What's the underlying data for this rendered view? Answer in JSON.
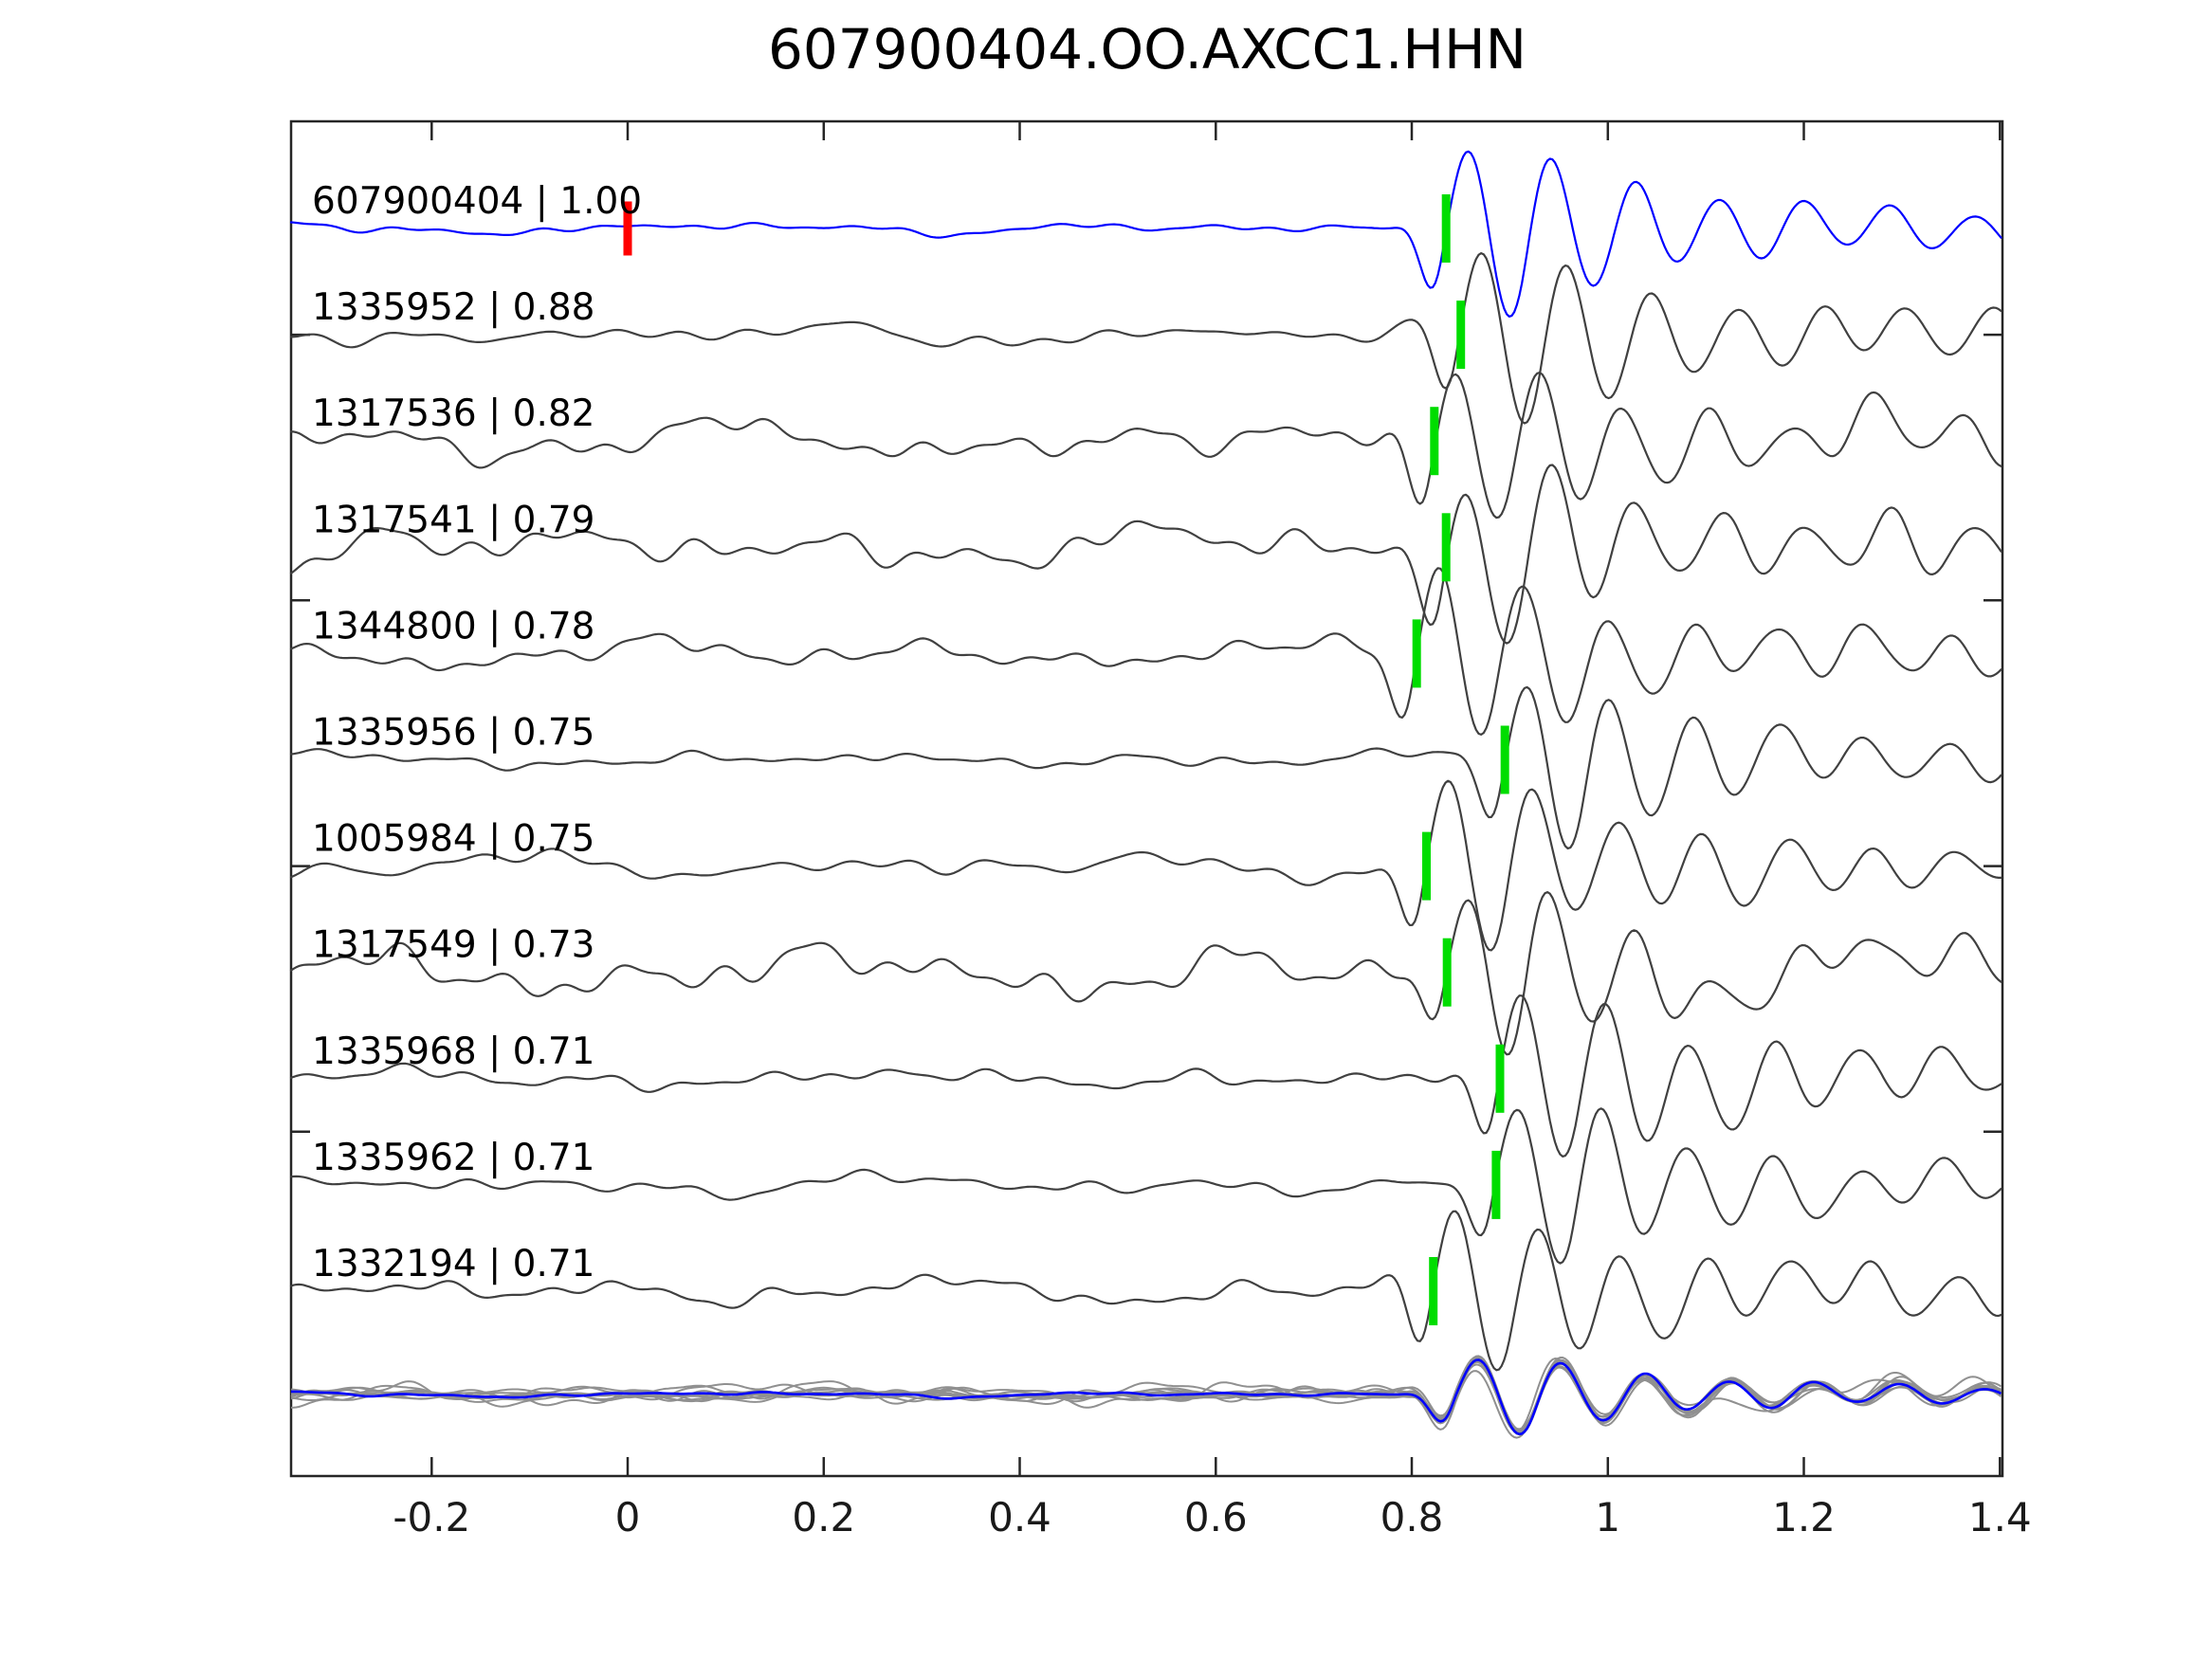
{
  "title": "607900404.OO.AXCC1.HHN",
  "colors": {
    "template_trace": "#0000ff",
    "matched_trace": "#404040",
    "overlay_member": "#909090",
    "overlay_stack": "#0000ff",
    "pick_marker": "#00dd00",
    "reference_marker": "#ff0000",
    "axis": "#262626",
    "text": "#000000",
    "background": "#ffffff"
  },
  "x_axis": {
    "tick_values": [
      -0.2,
      0,
      0.2,
      0.4,
      0.6,
      0.8,
      1,
      1.2,
      1.4
    ],
    "tick_labels": [
      "-0.2",
      "0",
      "0.2",
      "0.4",
      "0.6",
      "0.8",
      "1",
      "1.2",
      "1.4"
    ],
    "limits": [
      -0.343,
      1.403
    ]
  },
  "chart_data": {
    "type": "line",
    "title": "607900404.OO.AXCC1.HHN",
    "xlabel": "",
    "ylabel": "",
    "xlim": [
      -0.343,
      1.403
    ],
    "x_ticks": [
      -0.2,
      0,
      0.2,
      0.4,
      0.6,
      0.8,
      1,
      1.2,
      1.4
    ],
    "x_tick_labels": [
      "-0.2",
      "0",
      "0.2",
      "0.4",
      "0.6",
      "0.8",
      "1",
      "1.2",
      "1.4"
    ],
    "grid": false,
    "legend_position": "none",
    "description": "Template seismogram (blue, top row) and ten matched-event waveforms (dark gray rows) sorted by cross-correlation coefficient. Green bars mark the phase pick on each trace; the red bar marks the template reference time (t = 0). Bottom row overlays all traces aligned on their picks (gray) with the stacked/template trace in blue.",
    "traces": [
      {
        "event_id": "607900404",
        "correlation": 1.0,
        "label": "607900404 | 1.00",
        "pick_time": 0.835,
        "color_role": "template"
      },
      {
        "event_id": "1335952",
        "correlation": 0.88,
        "label": "1335952 | 0.88",
        "pick_time": 0.85,
        "color_role": "match"
      },
      {
        "event_id": "1317536",
        "correlation": 0.82,
        "label": "1317536 | 0.82",
        "pick_time": 0.823,
        "color_role": "match"
      },
      {
        "event_id": "1317541",
        "correlation": 0.79,
        "label": "1317541 | 0.79",
        "pick_time": 0.835,
        "color_role": "match"
      },
      {
        "event_id": "1344800",
        "correlation": 0.78,
        "label": "1344800 | 0.78",
        "pick_time": 0.805,
        "color_role": "match"
      },
      {
        "event_id": "1335956",
        "correlation": 0.75,
        "label": "1335956 | 0.75",
        "pick_time": 0.895,
        "color_role": "match"
      },
      {
        "event_id": "1005984",
        "correlation": 0.75,
        "label": "1005984 | 0.75",
        "pick_time": 0.815,
        "color_role": "match"
      },
      {
        "event_id": "1317549",
        "correlation": 0.73,
        "label": "1317549 | 0.73",
        "pick_time": 0.836,
        "color_role": "match"
      },
      {
        "event_id": "1335968",
        "correlation": 0.71,
        "label": "1335968 | 0.71",
        "pick_time": 0.89,
        "color_role": "match"
      },
      {
        "event_id": "1335962",
        "correlation": 0.71,
        "label": "1335962 | 0.71",
        "pick_time": 0.886,
        "color_role": "match"
      },
      {
        "event_id": "1332194",
        "correlation": 0.71,
        "label": "1332194 | 0.71",
        "pick_time": 0.822,
        "color_role": "match"
      }
    ],
    "reference_marker": {
      "trace_event_id": "607900404",
      "time": 0.0
    },
    "overlay_row": {
      "alignment_time": 0.845,
      "member_scale": 0.45
    }
  },
  "render": {
    "carrier_freq_note": "dominant waveform frequency in axis time units",
    "waveforms": [
      {
        "seed": 3,
        "noise_amp": 6,
        "sig_amp": 92,
        "freq": 11.6
      },
      {
        "seed": 7,
        "noise_amp": 11,
        "sig_amp": 95,
        "freq": 11.5
      },
      {
        "seed": 12,
        "noise_amp": 20,
        "sig_amp": 90,
        "freq": 11.7
      },
      {
        "seed": 19,
        "noise_amp": 24,
        "sig_amp": 95,
        "freq": 11.6
      },
      {
        "seed": 23,
        "noise_amp": 16,
        "sig_amp": 92,
        "freq": 11.4
      },
      {
        "seed": 31,
        "noise_amp": 9,
        "sig_amp": 88,
        "freq": 11.6
      },
      {
        "seed": 42,
        "noise_amp": 13,
        "sig_amp": 95,
        "freq": 11.5
      },
      {
        "seed": 55,
        "noise_amp": 28,
        "sig_amp": 88,
        "freq": 11.8
      },
      {
        "seed": 61,
        "noise_amp": 12,
        "sig_amp": 95,
        "freq": 11.6
      },
      {
        "seed": 74,
        "noise_amp": 11,
        "sig_amp": 90,
        "freq": 11.5
      },
      {
        "seed": 88,
        "noise_amp": 14,
        "sig_amp": 88,
        "freq": 11.7
      }
    ]
  }
}
